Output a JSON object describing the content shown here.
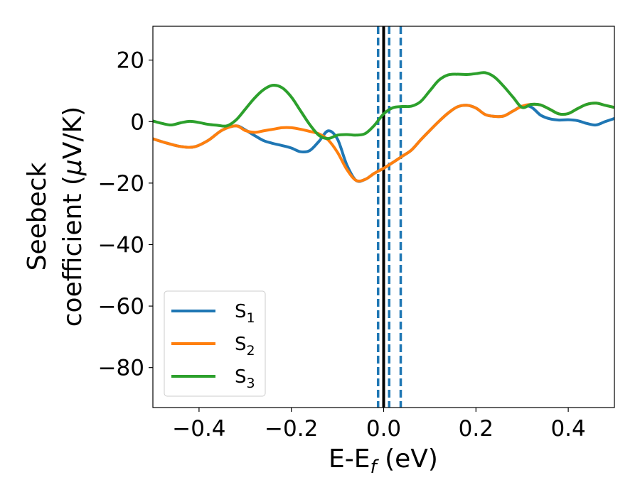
{
  "chart_data": {
    "type": "line",
    "xlabel": "E-E",
    "xlabel_sub": "f",
    "xlabel_unit": " (eV)",
    "ylabel_line1": "Seebeck",
    "ylabel_line2": "coefficient  (",
    "ylabel_mu": "μ",
    "ylabel_unit": "V/K)",
    "xlim": [
      -0.5,
      0.5
    ],
    "ylim": [
      -93,
      31
    ],
    "xticks": [
      -0.4,
      -0.2,
      0.0,
      0.2,
      0.4
    ],
    "xtick_labels": [
      "−0.4",
      "−0.2",
      "0.0",
      "0.2",
      "0.4"
    ],
    "yticks": [
      20,
      0,
      -20,
      -40,
      -60,
      -80
    ],
    "ytick_labels": [
      "20",
      "0",
      "−20",
      "−40",
      "−60",
      "−80"
    ],
    "grid": false,
    "legend_position": "bottom-left",
    "vlines": [
      {
        "x": 0.0,
        "color": "#000000",
        "style": "solid"
      },
      {
        "x": -0.012,
        "color": "#1f77b4",
        "style": "dashed"
      },
      {
        "x": 0.012,
        "color": "#1f77b4",
        "style": "dashed"
      },
      {
        "x": 0.037,
        "color": "#1f77b4",
        "style": "dashed"
      }
    ],
    "series": [
      {
        "name": "S",
        "sub": "1",
        "color": "#1f77b4",
        "points": [
          [
            -0.5,
            -5.6
          ],
          [
            -0.47,
            -7.0
          ],
          [
            -0.44,
            -8.1
          ],
          [
            -0.41,
            -8.2
          ],
          [
            -0.38,
            -6.1
          ],
          [
            -0.35,
            -2.8
          ],
          [
            -0.32,
            -1.4
          ],
          [
            -0.3,
            -2.7
          ],
          [
            -0.28,
            -4.5
          ],
          [
            -0.26,
            -6.2
          ],
          [
            -0.24,
            -7.1
          ],
          [
            -0.22,
            -7.8
          ],
          [
            -0.2,
            -8.6
          ],
          [
            -0.18,
            -9.8
          ],
          [
            -0.16,
            -9.4
          ],
          [
            -0.14,
            -6.4
          ],
          [
            -0.12,
            -3.0
          ],
          [
            -0.1,
            -5.7
          ],
          [
            -0.08,
            -14.0
          ],
          [
            -0.06,
            -19.1
          ],
          [
            -0.04,
            -18.8
          ],
          [
            -0.02,
            -16.8
          ],
          [
            0.0,
            -15.2
          ],
          [
            0.02,
            -13.3
          ],
          [
            0.04,
            -11.3
          ],
          [
            0.06,
            -9.3
          ],
          [
            0.08,
            -6.0
          ],
          [
            0.1,
            -2.9
          ],
          [
            0.12,
            0.1
          ],
          [
            0.14,
            2.8
          ],
          [
            0.16,
            4.8
          ],
          [
            0.18,
            5.3
          ],
          [
            0.2,
            4.4
          ],
          [
            0.22,
            2.3
          ],
          [
            0.24,
            1.7
          ],
          [
            0.26,
            1.8
          ],
          [
            0.28,
            3.4
          ],
          [
            0.3,
            5.0
          ],
          [
            0.32,
            4.7
          ],
          [
            0.34,
            2.1
          ],
          [
            0.36,
            0.9
          ],
          [
            0.38,
            0.5
          ],
          [
            0.4,
            0.6
          ],
          [
            0.42,
            0.3
          ],
          [
            0.44,
            -0.6
          ],
          [
            0.46,
            -1.1
          ],
          [
            0.48,
            0.0
          ],
          [
            0.5,
            1.0
          ]
        ]
      },
      {
        "name": "S",
        "sub": "2",
        "color": "#ff7f0e",
        "points": [
          [
            -0.5,
            -5.6
          ],
          [
            -0.47,
            -7.0
          ],
          [
            -0.44,
            -8.1
          ],
          [
            -0.41,
            -8.2
          ],
          [
            -0.38,
            -6.1
          ],
          [
            -0.35,
            -2.8
          ],
          [
            -0.32,
            -1.4
          ],
          [
            -0.3,
            -2.9
          ],
          [
            -0.28,
            -3.5
          ],
          [
            -0.26,
            -3.0
          ],
          [
            -0.24,
            -2.5
          ],
          [
            -0.22,
            -2.0
          ],
          [
            -0.2,
            -2.0
          ],
          [
            -0.18,
            -2.5
          ],
          [
            -0.16,
            -3.2
          ],
          [
            -0.14,
            -4.0
          ],
          [
            -0.12,
            -6.0
          ],
          [
            -0.1,
            -10.0
          ],
          [
            -0.08,
            -15.5
          ],
          [
            -0.06,
            -19.1
          ],
          [
            -0.04,
            -18.8
          ],
          [
            -0.02,
            -16.8
          ],
          [
            0.0,
            -15.2
          ],
          [
            0.02,
            -13.3
          ],
          [
            0.04,
            -11.3
          ],
          [
            0.06,
            -9.3
          ],
          [
            0.08,
            -6.0
          ],
          [
            0.1,
            -2.9
          ],
          [
            0.12,
            0.1
          ],
          [
            0.14,
            2.8
          ],
          [
            0.16,
            4.8
          ],
          [
            0.18,
            5.3
          ],
          [
            0.2,
            4.4
          ],
          [
            0.22,
            2.3
          ],
          [
            0.24,
            1.7
          ],
          [
            0.26,
            1.8
          ],
          [
            0.28,
            3.4
          ],
          [
            0.3,
            5.0
          ],
          [
            0.32,
            5.6
          ],
          [
            0.34,
            5.4
          ],
          [
            0.36,
            4.0
          ],
          [
            0.38,
            2.5
          ],
          [
            0.4,
            2.6
          ],
          [
            0.42,
            4.2
          ],
          [
            0.44,
            5.6
          ],
          [
            0.46,
            6.0
          ],
          [
            0.48,
            5.3
          ],
          [
            0.5,
            4.6
          ]
        ]
      },
      {
        "name": "S",
        "sub": "3",
        "color": "#2ca02c",
        "points": [
          [
            -0.5,
            0.2
          ],
          [
            -0.48,
            -0.6
          ],
          [
            -0.46,
            -1.1
          ],
          [
            -0.44,
            -0.4
          ],
          [
            -0.42,
            0.1
          ],
          [
            -0.4,
            -0.3
          ],
          [
            -0.38,
            -0.9
          ],
          [
            -0.36,
            -1.2
          ],
          [
            -0.34,
            -1.4
          ],
          [
            -0.32,
            0.5
          ],
          [
            -0.3,
            4.0
          ],
          [
            -0.28,
            7.6
          ],
          [
            -0.26,
            10.4
          ],
          [
            -0.24,
            11.8
          ],
          [
            -0.22,
            11.0
          ],
          [
            -0.2,
            8.0
          ],
          [
            -0.18,
            3.5
          ],
          [
            -0.16,
            -1.0
          ],
          [
            -0.14,
            -4.5
          ],
          [
            -0.12,
            -5.5
          ],
          [
            -0.1,
            -4.4
          ],
          [
            -0.08,
            -4.2
          ],
          [
            -0.06,
            -4.4
          ],
          [
            -0.04,
            -3.9
          ],
          [
            -0.02,
            -1.2
          ],
          [
            0.0,
            2.5
          ],
          [
            0.02,
            4.5
          ],
          [
            0.04,
            4.9
          ],
          [
            0.06,
            5.0
          ],
          [
            0.08,
            6.5
          ],
          [
            0.1,
            10.0
          ],
          [
            0.12,
            13.5
          ],
          [
            0.14,
            15.2
          ],
          [
            0.16,
            15.4
          ],
          [
            0.18,
            15.3
          ],
          [
            0.2,
            15.6
          ],
          [
            0.22,
            15.9
          ],
          [
            0.24,
            14.5
          ],
          [
            0.26,
            11.5
          ],
          [
            0.28,
            8.0
          ],
          [
            0.3,
            4.6
          ],
          [
            0.32,
            5.6
          ],
          [
            0.34,
            5.4
          ],
          [
            0.36,
            4.0
          ],
          [
            0.38,
            2.5
          ],
          [
            0.4,
            2.6
          ],
          [
            0.42,
            4.2
          ],
          [
            0.44,
            5.6
          ],
          [
            0.46,
            6.0
          ],
          [
            0.48,
            5.3
          ],
          [
            0.5,
            4.6
          ]
        ]
      }
    ]
  }
}
